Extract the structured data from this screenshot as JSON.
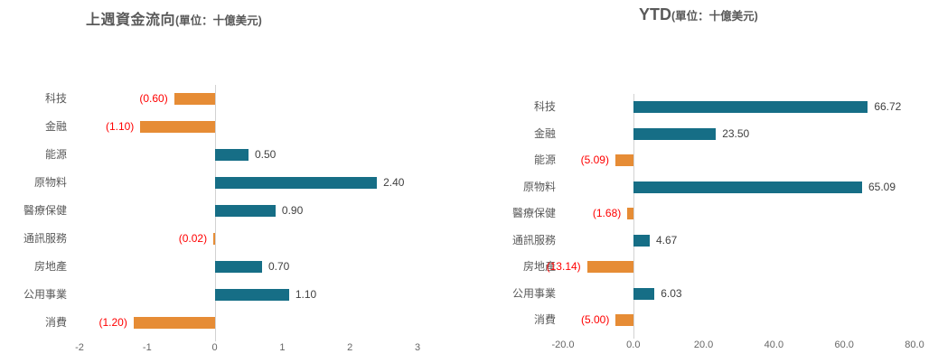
{
  "page": {
    "background": "#ffffff"
  },
  "chart_data": [
    {
      "type": "bar",
      "orientation": "horizontal",
      "title": "上週資金流向",
      "subtitle": "(單位：十億美元)",
      "categories": [
        "科技",
        "金融",
        "能源",
        "原物料",
        "醫療保健",
        "通訊服務",
        "房地產",
        "公用事業",
        "消費"
      ],
      "values": [
        -0.6,
        -1.1,
        0.5,
        2.4,
        0.9,
        -0.02,
        0.7,
        1.1,
        -1.2
      ],
      "value_labels": [
        "(0.60)",
        "(1.10)",
        "0.50",
        "2.40",
        "0.90",
        "(0.02)",
        "0.70",
        "1.10",
        "(1.20)"
      ],
      "axis": {
        "min": -2,
        "max": 3,
        "tick_values": [
          -2,
          -1,
          0,
          1,
          2,
          3
        ],
        "tick_labels": [
          "-2",
          "-1",
          "0",
          "1",
          "2",
          "3"
        ]
      },
      "colors": {
        "positive_bar": "#166E86",
        "negative_bar": "#E68C35",
        "positive_label": "#404040",
        "negative_label": "#FF0000"
      },
      "legend": "none",
      "grid": "none"
    },
    {
      "type": "bar",
      "orientation": "horizontal",
      "title": "YTD",
      "subtitle": "(單位：十億美元)",
      "categories": [
        "科技",
        "金融",
        "能源",
        "原物料",
        "醫療保健",
        "通訊服務",
        "房地產",
        "公用事業",
        "消費"
      ],
      "values": [
        66.72,
        23.5,
        -5.09,
        65.09,
        -1.68,
        4.67,
        -13.14,
        6.03,
        -5.0
      ],
      "value_labels": [
        "66.72",
        "23.50",
        "(5.09)",
        "65.09",
        "(1.68)",
        "4.67",
        "(13.14)",
        "6.03",
        "(5.00)"
      ],
      "axis": {
        "min": -20,
        "max": 80,
        "tick_values": [
          -20,
          0,
          20,
          40,
          60,
          80
        ],
        "tick_labels": [
          "-20.0",
          "0.0",
          "20.0",
          "40.0",
          "60.0",
          "80.0"
        ]
      },
      "colors": {
        "positive_bar": "#166E86",
        "negative_bar": "#E68C35",
        "positive_label": "#404040",
        "negative_label": "#FF0000"
      },
      "legend": "none",
      "grid": "none"
    }
  ]
}
